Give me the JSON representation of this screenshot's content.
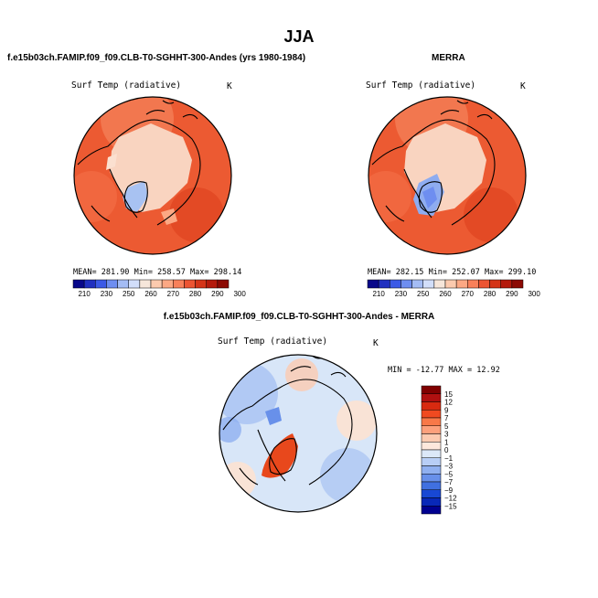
{
  "figure": {
    "title": "JJA",
    "panel_left": {
      "header": "f.e15b03ch.FAMIP.f09_f09.CLB-T0-SGHHT-300-Andes (yrs 1980-1984)",
      "variable": "Surf Temp (radiative)",
      "units": "K",
      "stats": {
        "mean_label": "MEAN=",
        "mean": "281.90",
        "min_label": "Min=",
        "min": "258.57",
        "max_label": "Max=",
        "max": "298.14"
      }
    },
    "panel_right": {
      "header": "MERRA",
      "variable": "Surf Temp (radiative)",
      "units": "K",
      "stats": {
        "mean_label": "MEAN=",
        "mean": "282.15",
        "min_label": "Min=",
        "min": "252.07",
        "max_label": "Max=",
        "max": "299.10"
      }
    },
    "panel_diff": {
      "header": "f.e15b03ch.FAMIP.f09_f09.CLB-T0-SGHHT-300-Andes - MERRA",
      "variable": "Surf Temp (radiative)",
      "units": "K",
      "stats_text": "MIN = -12.77  MAX =  12.92"
    },
    "colorbar_abs": {
      "labels": [
        "210",
        "230",
        "250",
        "260",
        "270",
        "280",
        "290",
        "300"
      ],
      "colors": [
        "#08088a",
        "#2030c0",
        "#3c5ae6",
        "#6e8ef0",
        "#a4bcf4",
        "#d2defa",
        "#f6e6da",
        "#fccaae",
        "#fca884",
        "#f8805a",
        "#ec5432",
        "#d43418",
        "#b41a0c",
        "#8c0a04"
      ]
    },
    "colorbar_diff": {
      "labels": [
        "15",
        "12",
        "9",
        "7",
        "5",
        "3",
        "1",
        "0",
        "−1",
        "−3",
        "−5",
        "−7",
        "−9",
        "−12",
        "−15"
      ],
      "colors": [
        "#800000",
        "#b01010",
        "#d82a10",
        "#f04a20",
        "#f87848",
        "#fca07c",
        "#fccab0",
        "#fde8dc",
        "#dce8f8",
        "#b8cef6",
        "#90b0f0",
        "#6890ea",
        "#4070e0",
        "#1848d4",
        "#0828b8",
        "#000090"
      ]
    },
    "palette": {
      "land_pale": "#f8d6c4",
      "cool_blue": "#a8c2f2",
      "warm_orange": "#ec5a32",
      "diff_background": "#d8e6f8",
      "diff_warm": "#e8481c"
    }
  }
}
